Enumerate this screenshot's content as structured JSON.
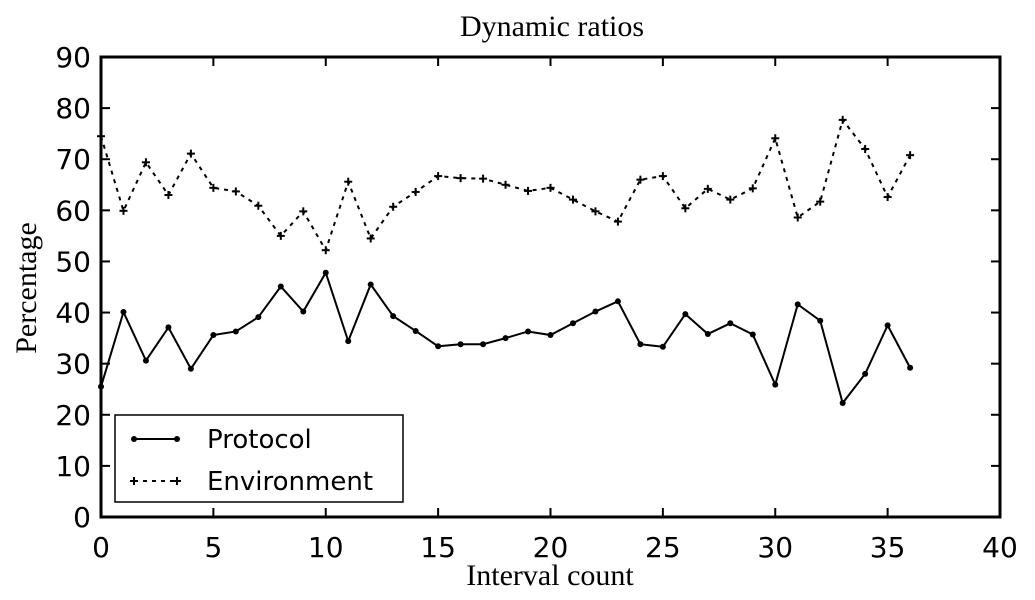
{
  "chart_data": {
    "type": "line",
    "title": "Dynamic ratios",
    "xlabel": "Interval count",
    "ylabel": "Percentage",
    "xlim": [
      0,
      40
    ],
    "ylim": [
      0,
      90
    ],
    "xticks": [
      0,
      5,
      10,
      15,
      20,
      25,
      30,
      35,
      40
    ],
    "yticks": [
      0,
      10,
      20,
      30,
      40,
      50,
      60,
      70,
      80,
      90
    ],
    "grid": false,
    "legend_position": "lower-left",
    "x": [
      0,
      1,
      2,
      3,
      4,
      5,
      6,
      7,
      8,
      9,
      10,
      11,
      12,
      13,
      14,
      15,
      16,
      17,
      18,
      19,
      20,
      21,
      22,
      23,
      24,
      25,
      26,
      27,
      28,
      29,
      30,
      31,
      32,
      33,
      34,
      35,
      36
    ],
    "series": [
      {
        "name": "Protocol",
        "style": "solid",
        "marker": "dot",
        "color": "#000000",
        "values": [
          25.5,
          40.1,
          30.6,
          37.1,
          29.0,
          35.6,
          36.3,
          39.1,
          45.1,
          40.2,
          47.8,
          34.4,
          45.5,
          39.3,
          36.4,
          33.4,
          33.8,
          33.8,
          35.0,
          36.3,
          35.6,
          37.9,
          40.2,
          42.2,
          33.8,
          33.3,
          39.7,
          35.8,
          37.9,
          35.7,
          25.9,
          41.6,
          38.4,
          22.3,
          28.0,
          37.5,
          29.2
        ]
      },
      {
        "name": "Environment",
        "style": "dashed",
        "marker": "plus",
        "color": "#000000",
        "values": [
          74.5,
          59.9,
          69.4,
          63.0,
          71.1,
          64.4,
          63.7,
          60.9,
          55.0,
          59.8,
          52.2,
          65.6,
          54.5,
          60.7,
          63.6,
          66.7,
          66.3,
          66.2,
          65.0,
          63.8,
          64.4,
          62.1,
          59.8,
          57.8,
          66.0,
          66.7,
          60.4,
          64.2,
          62.1,
          64.3,
          74.1,
          58.6,
          61.7,
          77.7,
          72.0,
          62.6,
          70.8
        ]
      }
    ]
  }
}
